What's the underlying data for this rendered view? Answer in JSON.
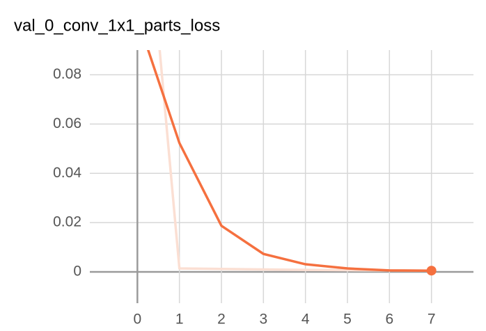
{
  "chart_data": {
    "type": "line",
    "title": "val_0_conv_1x1_parts_loss",
    "x": [
      0,
      1,
      2,
      3,
      4,
      5,
      6,
      7
    ],
    "series": [
      {
        "color": "#fbdfd3",
        "values": [
          0.19,
          0.0014,
          0.0012,
          0.001,
          0.0008,
          0.0007,
          0.0006,
          0.0005
        ]
      },
      {
        "color": "#f5703f",
        "values": [
          0.103,
          0.0523,
          0.0187,
          0.0073,
          0.0031,
          0.0014,
          0.0006,
          0.0005
        ]
      }
    ],
    "xlim": [
      -1,
      8
    ],
    "ylim": [
      -0.011,
      0.09
    ],
    "xticks": [
      0,
      1,
      2,
      3,
      4,
      5,
      6,
      7
    ],
    "yticks": [
      0,
      0.02,
      0.04,
      0.06,
      0.08
    ],
    "grid": true
  }
}
